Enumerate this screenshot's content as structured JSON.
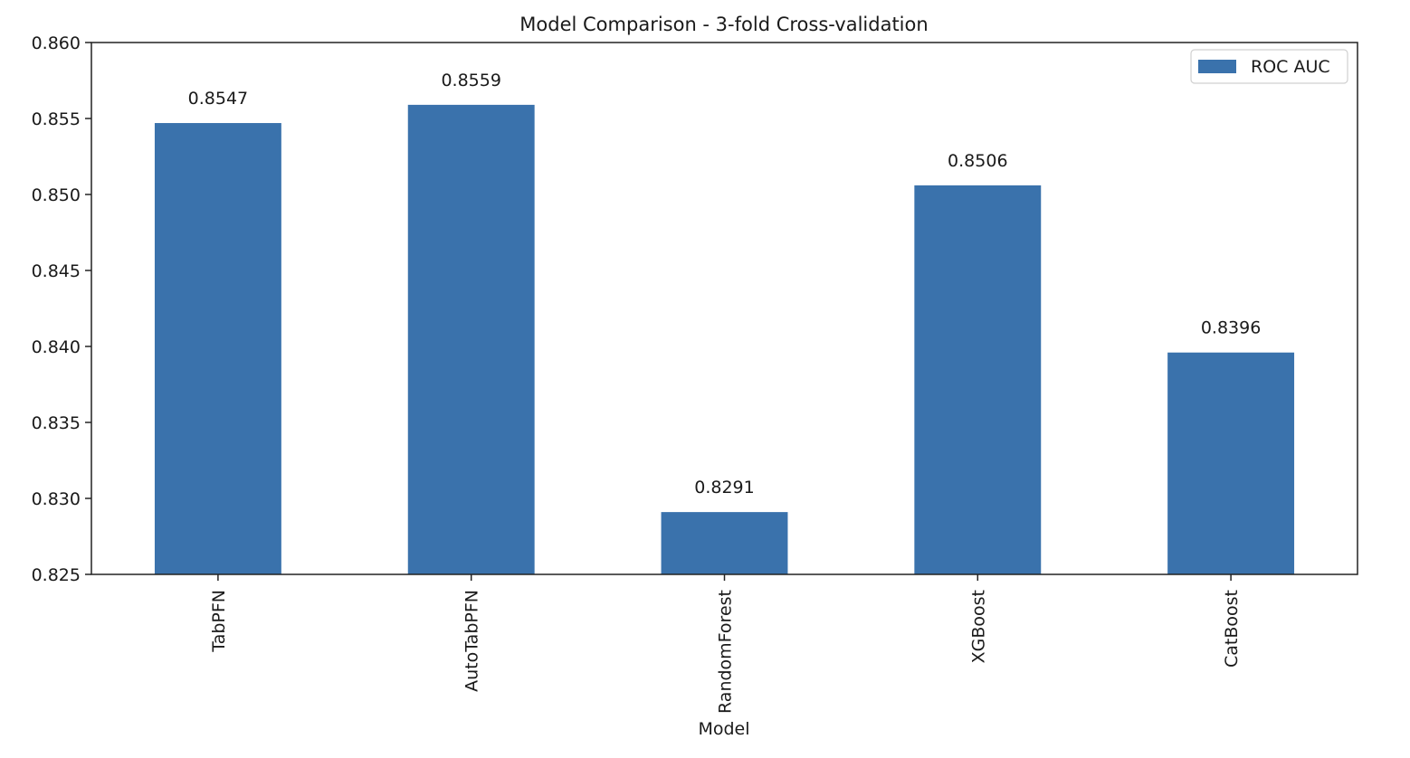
{
  "chart_data": {
    "type": "bar",
    "title": "Model Comparison - 3-fold Cross-validation",
    "xlabel": "Model",
    "ylabel": "",
    "categories": [
      "TabPFN",
      "AutoTabPFN",
      "RandomForest",
      "XGBoost",
      "CatBoost"
    ],
    "series": [
      {
        "name": "ROC AUC",
        "color": "#3a72ac",
        "values": [
          0.8547,
          0.8559,
          0.8291,
          0.8506,
          0.8396
        ]
      }
    ],
    "value_labels": [
      "0.8547",
      "0.8559",
      "0.8291",
      "0.8506",
      "0.8396"
    ],
    "ylim": [
      0.825,
      0.86
    ],
    "yticks": [
      "0.825",
      "0.830",
      "0.835",
      "0.840",
      "0.845",
      "0.850",
      "0.855",
      "0.860"
    ],
    "grid": false,
    "legend": {
      "position": "top-right",
      "entries": [
        "ROC AUC"
      ]
    }
  }
}
